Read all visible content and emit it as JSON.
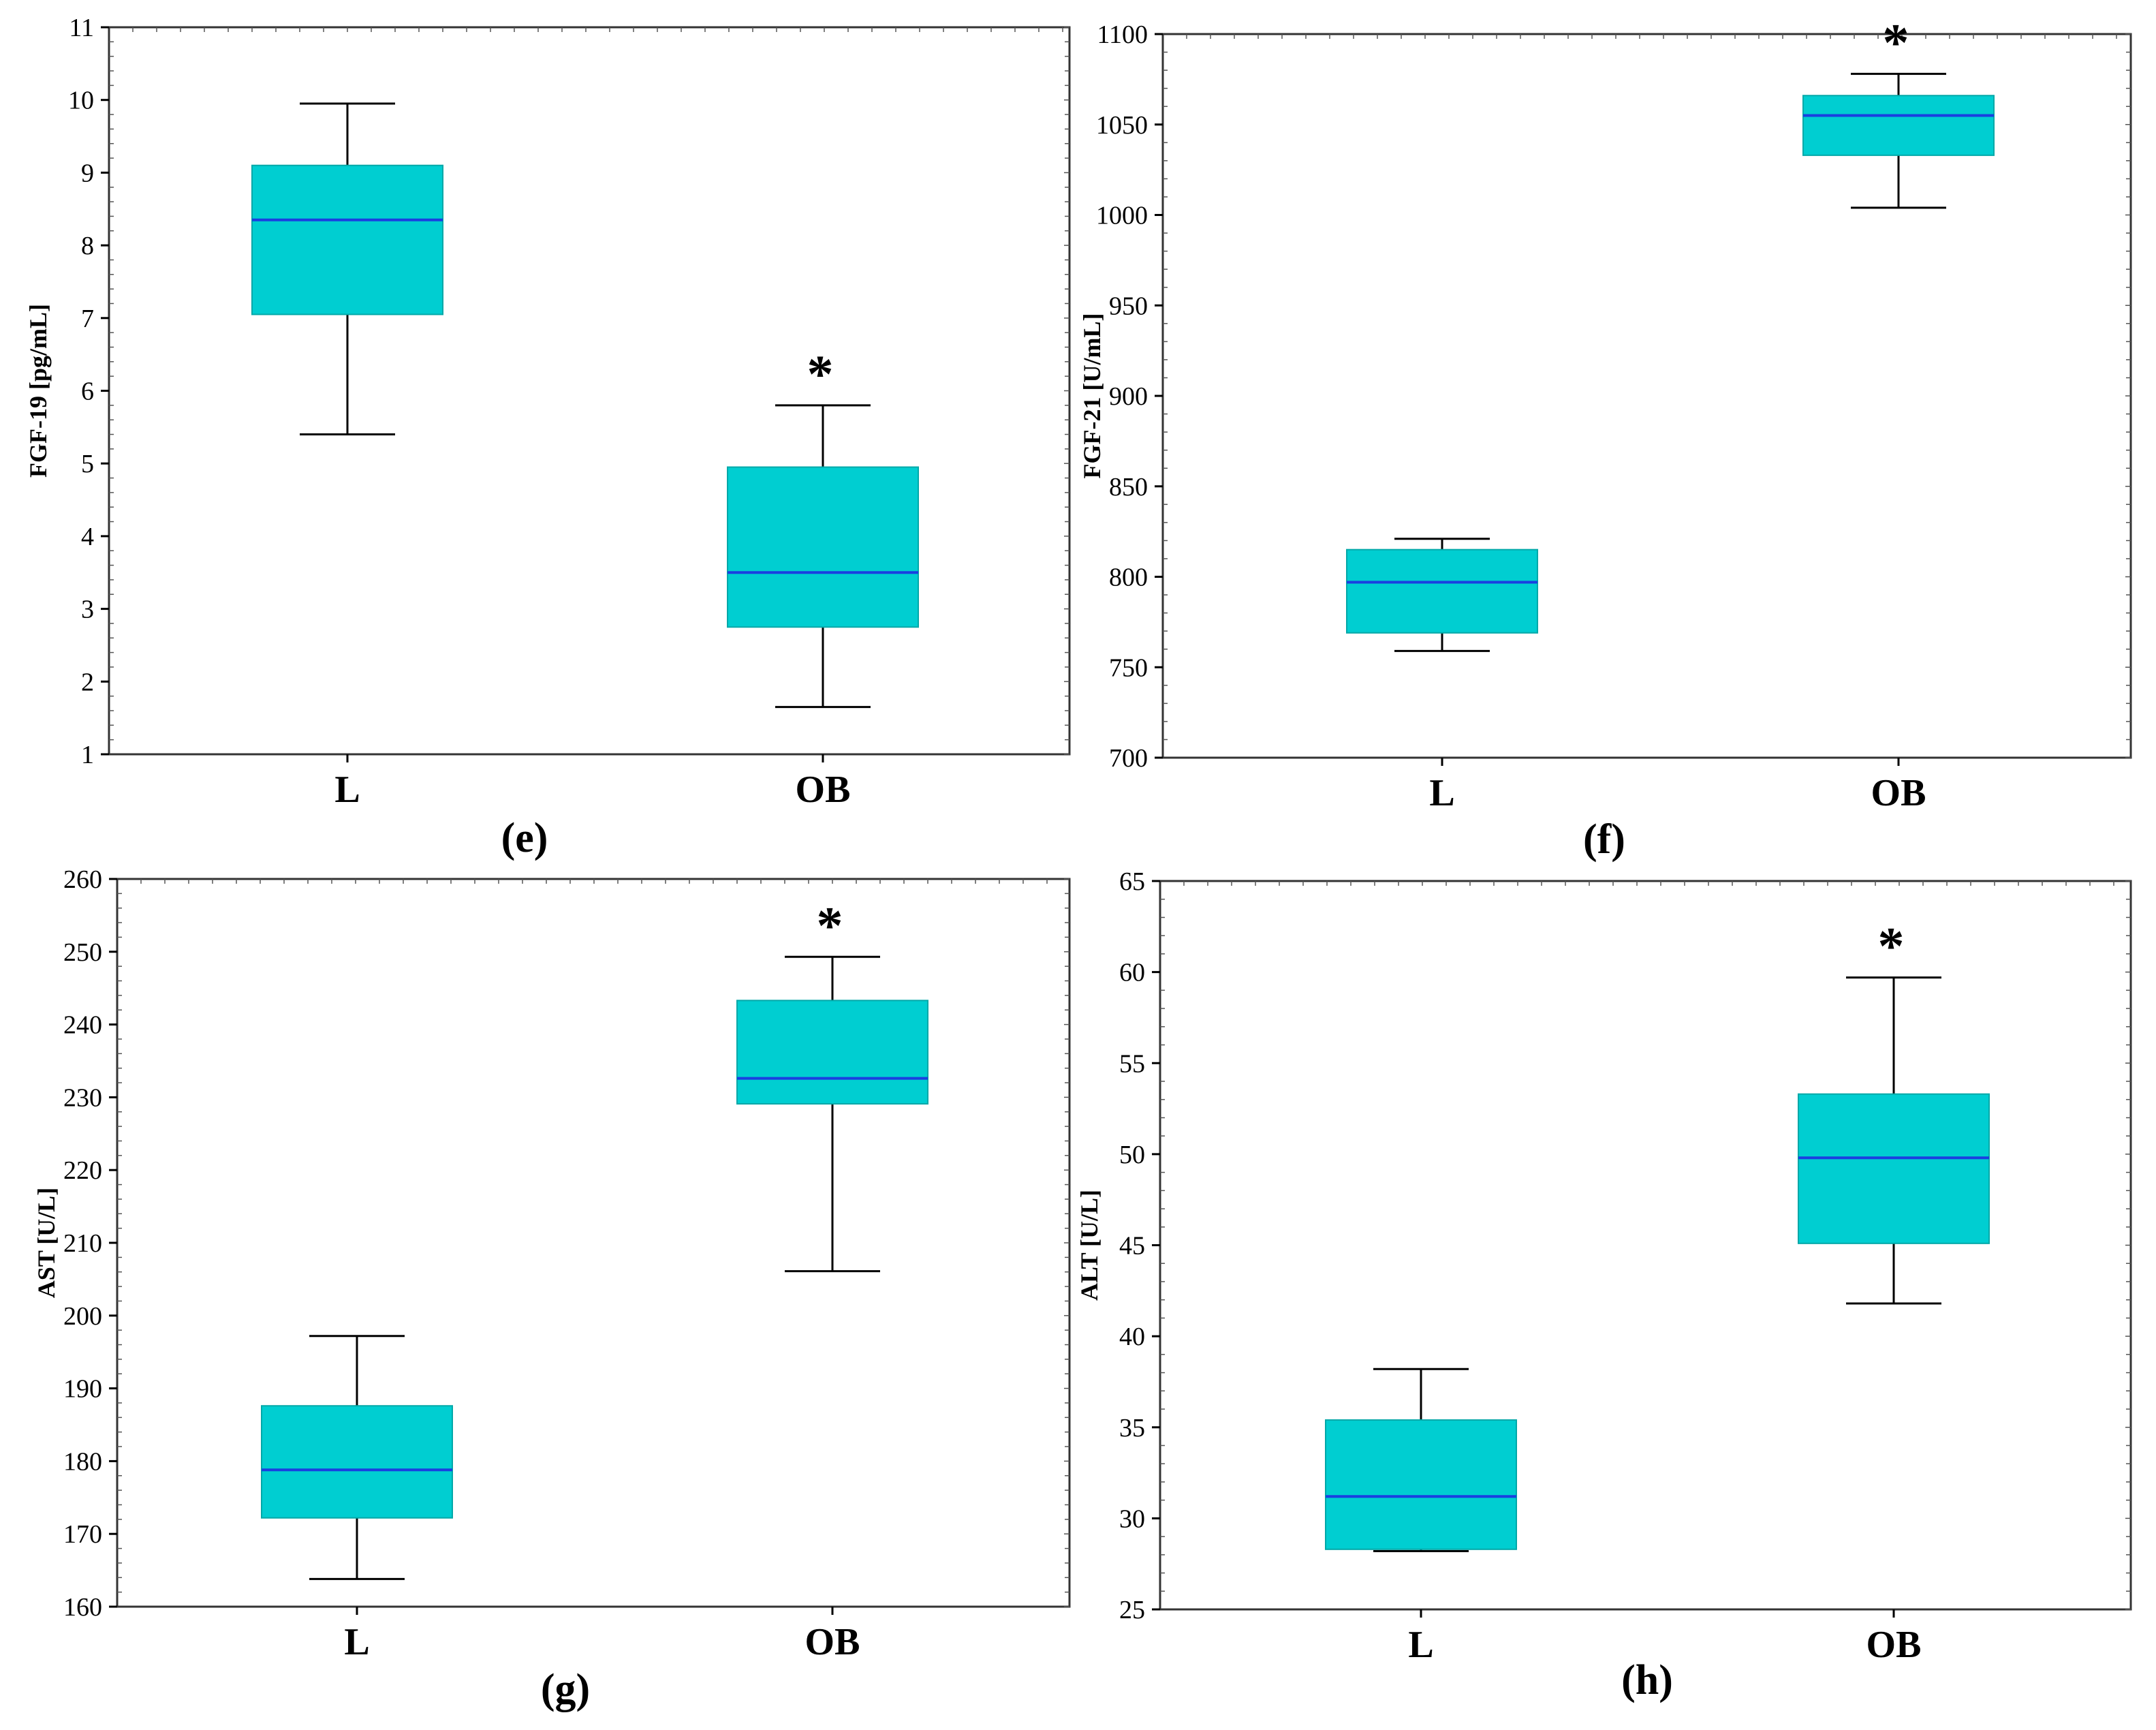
{
  "style": {
    "box_fill": "#00CED1",
    "median_color": "#1a3fe0",
    "frame_color": "#333333"
  },
  "chart_data": [
    {
      "type": "box",
      "panel": "(e)",
      "ylabel": "FGF-19 [pg/mL]",
      "ylim": [
        1,
        11
      ],
      "yticks": [
        1,
        2,
        3,
        4,
        5,
        6,
        7,
        8,
        9,
        10,
        11
      ],
      "categories": [
        "L",
        "OB"
      ],
      "boxes": [
        {
          "category": "L",
          "whisker_low": 5.4,
          "q1": 7.05,
          "median": 8.35,
          "q3": 9.1,
          "whisker_high": 9.95,
          "significant": false
        },
        {
          "category": "OB",
          "whisker_low": 1.65,
          "q1": 2.75,
          "median": 3.5,
          "q3": 4.95,
          "whisker_high": 5.8,
          "significant": true
        }
      ],
      "significance_mark": "*"
    },
    {
      "type": "box",
      "panel": "(f)",
      "ylabel": "FGF-21 [U/mL]",
      "ylim": [
        700,
        1100
      ],
      "yticks": [
        700,
        750,
        800,
        850,
        900,
        950,
        1000,
        1050,
        1100
      ],
      "categories": [
        "L",
        "OB"
      ],
      "boxes": [
        {
          "category": "L",
          "whisker_low": 759,
          "q1": 769,
          "median": 797,
          "q3": 815,
          "whisker_high": 821,
          "significant": false
        },
        {
          "category": "OB",
          "whisker_low": 1004,
          "q1": 1033,
          "median": 1055,
          "q3": 1066,
          "whisker_high": 1078,
          "significant": true
        }
      ],
      "significance_mark": "*"
    },
    {
      "type": "box",
      "panel": "(g)",
      "ylabel": "AST [U/L]",
      "ylim": [
        160,
        260
      ],
      "yticks": [
        160,
        170,
        180,
        190,
        200,
        210,
        220,
        230,
        240,
        250,
        260
      ],
      "categories": [
        "L",
        "OB"
      ],
      "boxes": [
        {
          "category": "L",
          "whisker_low": 163.8,
          "q1": 172.2,
          "median": 178.8,
          "q3": 187.6,
          "whisker_high": 197.2,
          "significant": false
        },
        {
          "category": "OB",
          "whisker_low": 206.1,
          "q1": 229.1,
          "median": 232.6,
          "q3": 243.3,
          "whisker_high": 249.3,
          "significant": true
        }
      ],
      "significance_mark": "*"
    },
    {
      "type": "box",
      "panel": "(h)",
      "ylabel": "ALT [U/L]",
      "ylim": [
        25,
        65
      ],
      "yticks": [
        25,
        30,
        35,
        40,
        45,
        50,
        55,
        60,
        65
      ],
      "categories": [
        "L",
        "OB"
      ],
      "boxes": [
        {
          "category": "L",
          "whisker_low": 28.2,
          "q1": 28.3,
          "median": 31.2,
          "q3": 35.4,
          "whisker_high": 38.2,
          "significant": false
        },
        {
          "category": "OB",
          "whisker_low": 41.8,
          "q1": 45.1,
          "median": 49.8,
          "q3": 53.3,
          "whisker_high": 59.7,
          "significant": true
        }
      ],
      "significance_mark": "*"
    }
  ]
}
